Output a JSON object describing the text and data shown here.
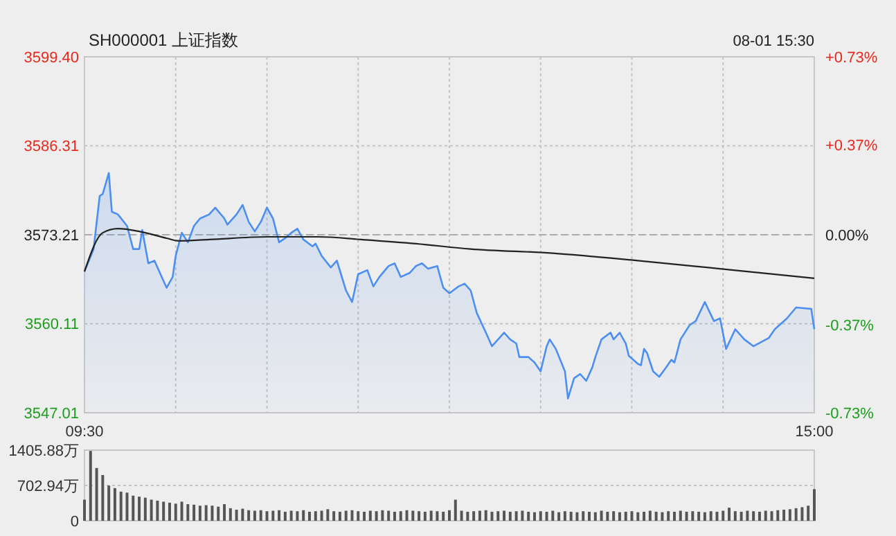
{
  "chart_data": [
    {
      "type": "line",
      "title": "SH000001 上证指数",
      "annotations": [
        "08-01 15:30"
      ],
      "categories": [
        "09:30",
        null,
        null,
        null,
        null,
        null,
        null,
        null,
        null,
        null,
        null,
        null,
        null,
        null,
        null,
        null,
        null,
        null,
        null,
        null,
        null,
        null,
        null,
        null,
        null,
        null,
        null,
        null,
        null,
        null,
        null,
        null,
        null,
        null,
        null,
        null,
        null,
        null,
        null,
        null,
        null,
        null,
        null,
        null,
        null,
        null,
        null,
        null,
        null,
        null,
        null,
        null,
        null,
        null,
        null,
        null,
        null,
        null,
        null,
        null,
        null,
        null,
        null,
        null,
        null,
        null,
        null,
        null,
        null,
        null,
        null,
        null,
        null,
        null,
        null,
        null,
        null,
        null,
        null,
        null,
        null,
        null,
        null,
        null,
        null,
        null,
        null,
        null,
        null,
        null,
        null,
        null,
        null,
        null,
        null,
        null,
        null,
        null,
        null,
        null,
        null,
        null,
        null,
        null,
        null,
        null,
        null,
        null,
        null,
        null,
        null,
        null,
        null,
        null,
        null,
        null,
        null,
        null,
        null,
        null,
        null,
        null,
        null,
        null,
        null,
        null,
        null,
        null,
        null,
        null,
        null,
        null,
        null,
        null,
        null,
        null,
        null,
        null,
        null,
        null,
        null,
        null,
        null,
        null,
        null,
        null,
        null,
        null,
        null,
        null,
        null,
        null,
        null,
        null,
        null,
        null,
        null,
        null,
        null,
        null,
        null,
        null,
        null,
        null,
        null,
        null,
        null,
        null,
        null,
        null,
        null,
        null,
        null,
        null,
        null,
        null,
        null,
        null,
        null,
        null,
        null,
        null,
        null,
        null,
        null,
        null,
        null,
        null,
        null,
        null,
        null,
        null,
        null,
        null,
        null,
        null,
        null,
        null,
        null,
        null,
        null,
        null,
        null,
        null,
        null,
        null,
        null,
        null,
        null,
        null,
        null,
        null,
        null,
        null,
        null,
        null,
        null,
        null,
        null,
        null,
        null,
        null,
        null,
        null,
        null,
        null,
        null,
        null,
        null,
        null,
        null,
        null,
        null,
        null,
        null,
        null,
        null,
        null,
        null,
        null,
        "15:00"
      ],
      "ylim": [
        3547.01,
        3599.4
      ],
      "yticks": [
        3547.01,
        3560.11,
        3573.21,
        3586.31,
        {
          "value": 3599.4,
          "label": "3599.40"
        }
      ],
      "y2lim": [
        -0.73,
        0.73
      ],
      "y2ticks": [
        {
          "value": -0.73,
          "label": "-0.73%"
        },
        {
          "value": -0.37,
          "label": "-0.37%"
        },
        {
          "value": 0,
          "label": "0.00%"
        },
        {
          "value": 0.37,
          "label": "+0.37%"
        },
        {
          "value": 0.73,
          "label": "+0.73%"
        }
      ],
      "grid": true,
      "ref_lines": [
        {
          "axis": "y",
          "value": 3573.21,
          "color": "#aaaaaa",
          "line_style": "dashed"
        }
      ],
      "series": [
        {
          "type": "area",
          "color": "#4d8ff0",
          "values": [
            3567.8,
            null,
            null,
            3571.1,
            null,
            3578.9,
            3579.2,
            null,
            3582.3,
            3576.6,
            null,
            3576.2,
            null,
            null,
            3574.5,
            null,
            3571.1,
            null,
            3571.1,
            3573.9,
            null,
            3569.0,
            null,
            3569.4,
            null,
            3567.4,
            null,
            3565.4,
            null,
            3567.0,
            3570.1,
            null,
            3573.5,
            null,
            3572.1,
            null,
            3574.5,
            null,
            3575.6,
            null,
            null,
            3576.2,
            null,
            3577.2,
            null,
            null,
            3575.6,
            3574.7,
            null,
            null,
            3576.2,
            null,
            3577.6,
            null,
            3575.1,
            null,
            3573.7,
            null,
            3575.1,
            null,
            3577.2,
            null,
            3575.6,
            null,
            3572.1,
            null,
            3572.7,
            null,
            3573.5,
            null,
            3574.1,
            null,
            3572.5,
            null,
            null,
            3571.5,
            3571.9,
            null,
            3570.1,
            null,
            null,
            3568.4,
            null,
            3569.4,
            null,
            null,
            3565.0,
            null,
            3563.3,
            null,
            3567.4,
            null,
            null,
            3568.0,
            null,
            3565.6,
            null,
            3567.0,
            null,
            null,
            3568.6,
            null,
            3569.0,
            null,
            3567.0,
            null,
            null,
            3567.6,
            null,
            3568.6,
            null,
            3569.0,
            null,
            3568.2,
            null,
            null,
            3568.6,
            null,
            3565.4,
            null,
            3564.6,
            null,
            null,
            3565.6,
            null,
            3566.0,
            null,
            3565.0,
            null,
            3561.7,
            null,
            null,
            3558.8,
            null,
            3556.8,
            null,
            3557.8,
            null,
            3558.8,
            null,
            3557.8,
            null,
            3557.2,
            3555.2,
            null,
            null,
            3555.2,
            null,
            3554.4,
            null,
            3553.1,
            null,
            3556.8,
            3557.8,
            null,
            3556.4,
            null,
            null,
            3553.1,
            3549.1,
            null,
            3552.1,
            null,
            3552.7,
            null,
            3551.7,
            null,
            3553.7,
            3555.2,
            null,
            3557.8,
            null,
            null,
            3558.8,
            3557.8,
            null,
            3558.8,
            null,
            3557.2,
            3555.4,
            null,
            null,
            3554.2,
            3554.0,
            3556.4,
            3555.8,
            null,
            3553.1,
            null,
            3552.3,
            null,
            3553.5,
            null,
            3554.8,
            3554.4,
            null,
            3557.8,
            null,
            null,
            3559.9,
            null,
            3560.5,
            null,
            null,
            3563.3,
            null,
            null,
            3560.5,
            null,
            3560.9,
            null,
            3556.4,
            null,
            null,
            3559.3,
            null,
            null,
            3557.8,
            null,
            null,
            3556.8,
            null,
            null,
            null,
            null,
            3558.0,
            null,
            3559.3,
            null,
            null,
            null,
            3560.9,
            null,
            null,
            3562.5,
            null,
            null,
            null,
            null,
            3562.3,
            3559.3
          ]
        },
        {
          "color": "#222222",
          "values": [
            3567.8,
            null,
            null,
            null,
            null,
            null,
            3573.5,
            null,
            null,
            null,
            null,
            3574.1,
            null,
            null,
            null,
            null,
            null,
            null,
            3573.7,
            null,
            null,
            null,
            null,
            null,
            null,
            null,
            null,
            3572.7,
            null,
            null,
            null,
            3572.3,
            null,
            null,
            null,
            null,
            null,
            null,
            null,
            null,
            null,
            3572.5,
            null,
            null,
            null,
            null,
            null,
            null,
            null,
            null,
            null,
            null,
            null,
            null,
            null,
            null,
            null,
            null,
            null,
            null,
            3572.9,
            null,
            null,
            null,
            null,
            null,
            null,
            null,
            null,
            null,
            null,
            null,
            null,
            null,
            null,
            null,
            null,
            3572.9,
            null,
            null,
            null,
            null,
            null,
            null,
            null,
            null,
            null,
            null,
            null,
            null,
            null,
            3572.5,
            null,
            null,
            null,
            null,
            null,
            null,
            null,
            null,
            null,
            null,
            null,
            null,
            null,
            null,
            null,
            null,
            null,
            3571.9,
            null,
            null,
            null,
            null,
            null,
            null,
            null,
            null,
            null,
            null,
            null,
            null,
            null,
            null,
            null,
            null,
            null,
            3571.1,
            null,
            null,
            null,
            null,
            null,
            null,
            null,
            null,
            null,
            null,
            null,
            null,
            null,
            null,
            null,
            null,
            null,
            null,
            null,
            null,
            null,
            null,
            null,
            null,
            null,
            null,
            3570.5,
            null,
            null,
            null,
            null,
            null,
            null,
            null,
            null,
            null,
            null,
            null,
            null,
            null,
            null,
            null,
            null,
            null,
            null,
            null,
            null,
            null,
            null,
            null,
            null,
            null,
            null,
            null,
            3569.4,
            null,
            null,
            null,
            null,
            null,
            null,
            null,
            null,
            null,
            null,
            null,
            null,
            null,
            null,
            null,
            null,
            null,
            null,
            null,
            null,
            null,
            null,
            null,
            null,
            null,
            null,
            3568.2,
            null,
            null,
            null,
            null,
            null,
            null,
            null,
            null,
            null,
            null,
            null,
            null,
            null,
            null,
            null,
            null,
            null,
            null,
            null,
            null,
            null,
            null,
            null,
            null,
            null,
            null,
            null,
            null,
            null,
            null,
            3566.8
          ]
        }
      ]
    },
    {
      "type": "bar",
      "categories": [
        null,
        null,
        null,
        null,
        null,
        null,
        null,
        null,
        null,
        null,
        null,
        null,
        null,
        null,
        null,
        null,
        null,
        null,
        null,
        null,
        null,
        null,
        null,
        null,
        null,
        null,
        null,
        null,
        null,
        null,
        null,
        null,
        null,
        null,
        null,
        null,
        null,
        null,
        null,
        null,
        null,
        null,
        null,
        null,
        null,
        null,
        null,
        null,
        null,
        null,
        null,
        null,
        null,
        null,
        null,
        null,
        null,
        null,
        null,
        null,
        null,
        null,
        null,
        null,
        null,
        null,
        null,
        null,
        null,
        null,
        null,
        null,
        null,
        null,
        null,
        null,
        null,
        null,
        null,
        null,
        null,
        null,
        null,
        null,
        null,
        null,
        null,
        null,
        null,
        null,
        null,
        null,
        null,
        null,
        null,
        null,
        null,
        null,
        null,
        null,
        null,
        null,
        null,
        null,
        null,
        null,
        null,
        null,
        null,
        null,
        null,
        null,
        null,
        null,
        null,
        null,
        null,
        null,
        null,
        null,
        null
      ],
      "ylim": [
        0,
        1405.88
      ],
      "yticks": [
        0,
        {
          "value": 702.94,
          "label": "702.94万"
        },
        {
          "value": 1405.88,
          "label": "1405.88万"
        }
      ],
      "grid": "y",
      "tick_labels": "y",
      "series": [
        {
          "color": "#555555",
          "values": [
            420,
            1390,
            1050,
            910,
            700,
            650,
            580,
            560,
            500,
            480,
            460,
            420,
            400,
            380,
            360,
            340,
            380,
            330,
            320,
            300,
            310,
            300,
            280,
            330,
            250,
            220,
            240,
            210,
            200,
            210,
            190,
            200,
            210,
            180,
            200,
            190,
            210,
            180,
            190,
            200,
            230,
            190,
            180,
            200,
            210,
            190,
            180,
            200,
            190,
            210,
            200,
            180,
            190,
            210,
            200,
            190,
            180,
            200,
            190,
            180,
            210,
            420,
            200,
            180,
            190,
            200,
            210,
            180,
            190,
            200,
            180,
            190,
            200,
            180,
            170,
            190,
            180,
            200,
            170,
            190,
            180,
            170,
            190,
            180,
            170,
            200,
            180,
            190,
            170,
            180,
            190,
            170,
            180,
            200,
            180,
            170,
            190,
            180,
            200,
            180,
            190,
            180,
            170,
            190,
            180,
            200,
            260,
            190,
            180,
            200,
            190,
            180,
            200,
            190,
            210,
            220,
            230,
            250,
            270,
            300,
            630
          ]
        }
      ]
    }
  ]
}
